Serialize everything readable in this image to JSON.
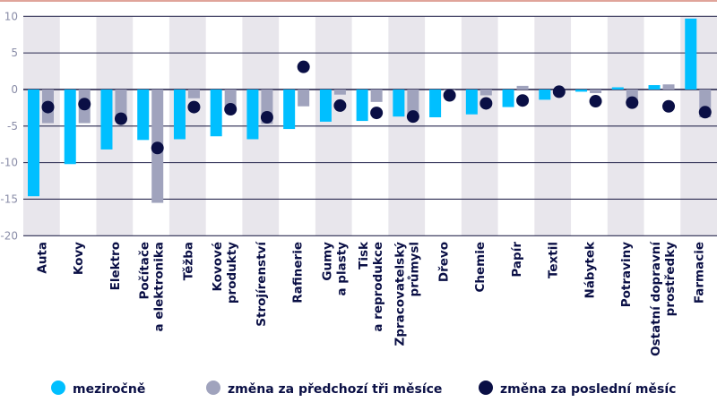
{
  "chart_data": {
    "type": "bar",
    "categories": [
      [
        "Auta"
      ],
      [
        "Kovy"
      ],
      [
        "Elektro"
      ],
      [
        "Počítače",
        "a elektronika"
      ],
      [
        "Těžba"
      ],
      [
        "Kovové",
        "produkty"
      ],
      [
        "Strojírenství"
      ],
      [
        "Rafinerie"
      ],
      [
        "Gumy",
        "a plasty"
      ],
      [
        "Tisk",
        "a reprodukce"
      ],
      [
        "Zpracovatelský",
        "průmysl"
      ],
      [
        "Dřevo"
      ],
      [
        "Chemie"
      ],
      [
        "Papír"
      ],
      [
        "Textil"
      ],
      [
        "Nábytek"
      ],
      [
        "Potraviny"
      ],
      [
        "Ostatní dopravní",
        "prostředky"
      ],
      [
        "Farmacie"
      ]
    ],
    "series": [
      {
        "name": "meziročně",
        "type": "bar",
        "color": "#00bfff",
        "values": [
          -14.6,
          -10.2,
          -8.2,
          -6.9,
          -6.8,
          -6.4,
          -6.8,
          -5.4,
          -4.4,
          -4.3,
          -3.7,
          -3.8,
          -3.4,
          -2.4,
          -1.4,
          -0.3,
          0.3,
          0.6,
          9.7
        ]
      },
      {
        "name": "změna za předchozí tři měsíce",
        "type": "bar",
        "color": "#a0a3bd",
        "values": [
          -4.6,
          -4.6,
          -4.0,
          -15.5,
          -1.2,
          -2.8,
          -4.7,
          -2.3,
          -0.7,
          -1.7,
          -3.7,
          -0.1,
          -0.8,
          0.5,
          0.0,
          -0.5,
          -2.2,
          0.7,
          -3.8
        ]
      },
      {
        "name": "změna za poslední měsíc",
        "type": "dot",
        "color": "#0a0f45",
        "values": [
          -2.4,
          -2.0,
          -4.0,
          -8.0,
          -2.4,
          -2.7,
          -3.8,
          3.1,
          -2.2,
          -3.2,
          -3.7,
          -0.8,
          -1.9,
          -1.5,
          -0.3,
          -1.6,
          -1.8,
          -2.3,
          -3.1
        ]
      }
    ],
    "ylim": [
      -20,
      10
    ],
    "yticks": [
      10,
      5,
      0,
      -5,
      -10,
      -15,
      -20
    ],
    "grid": true,
    "legend": "bottom",
    "band_color": "#e8e6ec",
    "grid_color": "#2a2a50"
  }
}
